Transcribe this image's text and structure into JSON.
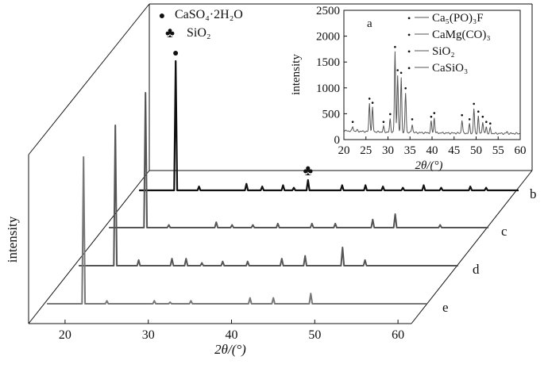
{
  "chart_data": [
    {
      "type": "line",
      "title": "",
      "xlabel": "2θ/(°)",
      "ylabel": "intensity",
      "xlim": [
        16,
        62
      ],
      "xticks": [
        20,
        30,
        40,
        50,
        60
      ],
      "grid": false,
      "legend": {
        "placement": "top-left",
        "entries": [
          {
            "marker": "●",
            "label": "CaSO₄·2H₂O"
          },
          {
            "marker": "♣",
            "label": "SiO₂"
          }
        ]
      },
      "annotations": [
        {
          "marker": "●",
          "series": "b",
          "x": 20.6
        },
        {
          "marker": "♣",
          "series": "b",
          "x": 36.5
        }
      ],
      "series": [
        {
          "name": "b",
          "color": "#111111",
          "x": [
            20.6,
            23.4,
            29.1,
            31.0,
            33.5,
            34.8,
            36.5,
            40.6,
            43.4,
            45.5,
            47.9,
            50.4,
            52.5,
            56.0,
            57.9
          ],
          "y": [
            1.0,
            0.03,
            0.05,
            0.03,
            0.04,
            0.02,
            0.08,
            0.04,
            0.04,
            0.03,
            0.02,
            0.04,
            0.02,
            0.03,
            0.02
          ]
        },
        {
          "name": "c",
          "color": "#555555",
          "x": [
            20.6,
            23.4,
            29.1,
            31.0,
            33.5,
            36.5,
            40.6,
            43.4,
            47.9,
            50.6,
            56.0
          ],
          "y": [
            1.0,
            0.02,
            0.04,
            0.02,
            0.02,
            0.03,
            0.03,
            0.03,
            0.06,
            0.1,
            0.02
          ]
        },
        {
          "name": "d",
          "color": "#555555",
          "x": [
            20.6,
            23.4,
            27.4,
            29.1,
            31.0,
            33.5,
            36.5,
            40.6,
            43.4,
            47.9,
            50.6
          ],
          "y": [
            1.0,
            0.04,
            0.05,
            0.05,
            0.02,
            0.03,
            0.03,
            0.05,
            0.07,
            0.13,
            0.04
          ]
        },
        {
          "name": "e",
          "color": "#777777",
          "x": [
            20.6,
            23.4,
            29.1,
            31.0,
            33.5,
            40.6,
            43.4,
            47.9
          ],
          "y": [
            1.0,
            0.02,
            0.02,
            0.01,
            0.02,
            0.04,
            0.04,
            0.07
          ]
        }
      ]
    },
    {
      "type": "line",
      "title": "",
      "panel_label": "a",
      "xlabel": "2θ/(°)",
      "ylabel": "intensity",
      "xlim": [
        20,
        60
      ],
      "ylim": [
        0,
        2500
      ],
      "xticks": [
        20,
        25,
        30,
        35,
        40,
        45,
        50,
        55,
        60
      ],
      "yticks": [
        0,
        500,
        1000,
        1500,
        2000,
        2500
      ],
      "grid": false,
      "legend": {
        "placement": "top-right",
        "entries": [
          {
            "marker": "•",
            "label": "Ca₅(PO)₃F"
          },
          {
            "marker": "•",
            "label": "CaMg(CO)₃"
          },
          {
            "marker": "•",
            "label": "SiO₂"
          },
          {
            "marker": "•",
            "label": "CaSiO₃"
          }
        ]
      },
      "series": [
        {
          "name": "",
          "color": "#555555",
          "x": [
            20.5,
            22.0,
            23.0,
            25.8,
            26.5,
            29.0,
            30.5,
            31.6,
            32.2,
            33.0,
            34.0,
            35.5,
            39.8,
            40.5,
            46.8,
            48.5,
            49.5,
            50.5,
            51.5,
            52.3,
            53.2,
            57.0,
            59.0
          ],
          "y": [
            150,
            250,
            180,
            700,
            620,
            250,
            400,
            1700,
            1250,
            1200,
            900,
            300,
            350,
            420,
            380,
            300,
            600,
            450,
            350,
            250,
            220,
            150,
            120
          ]
        }
      ]
    }
  ]
}
